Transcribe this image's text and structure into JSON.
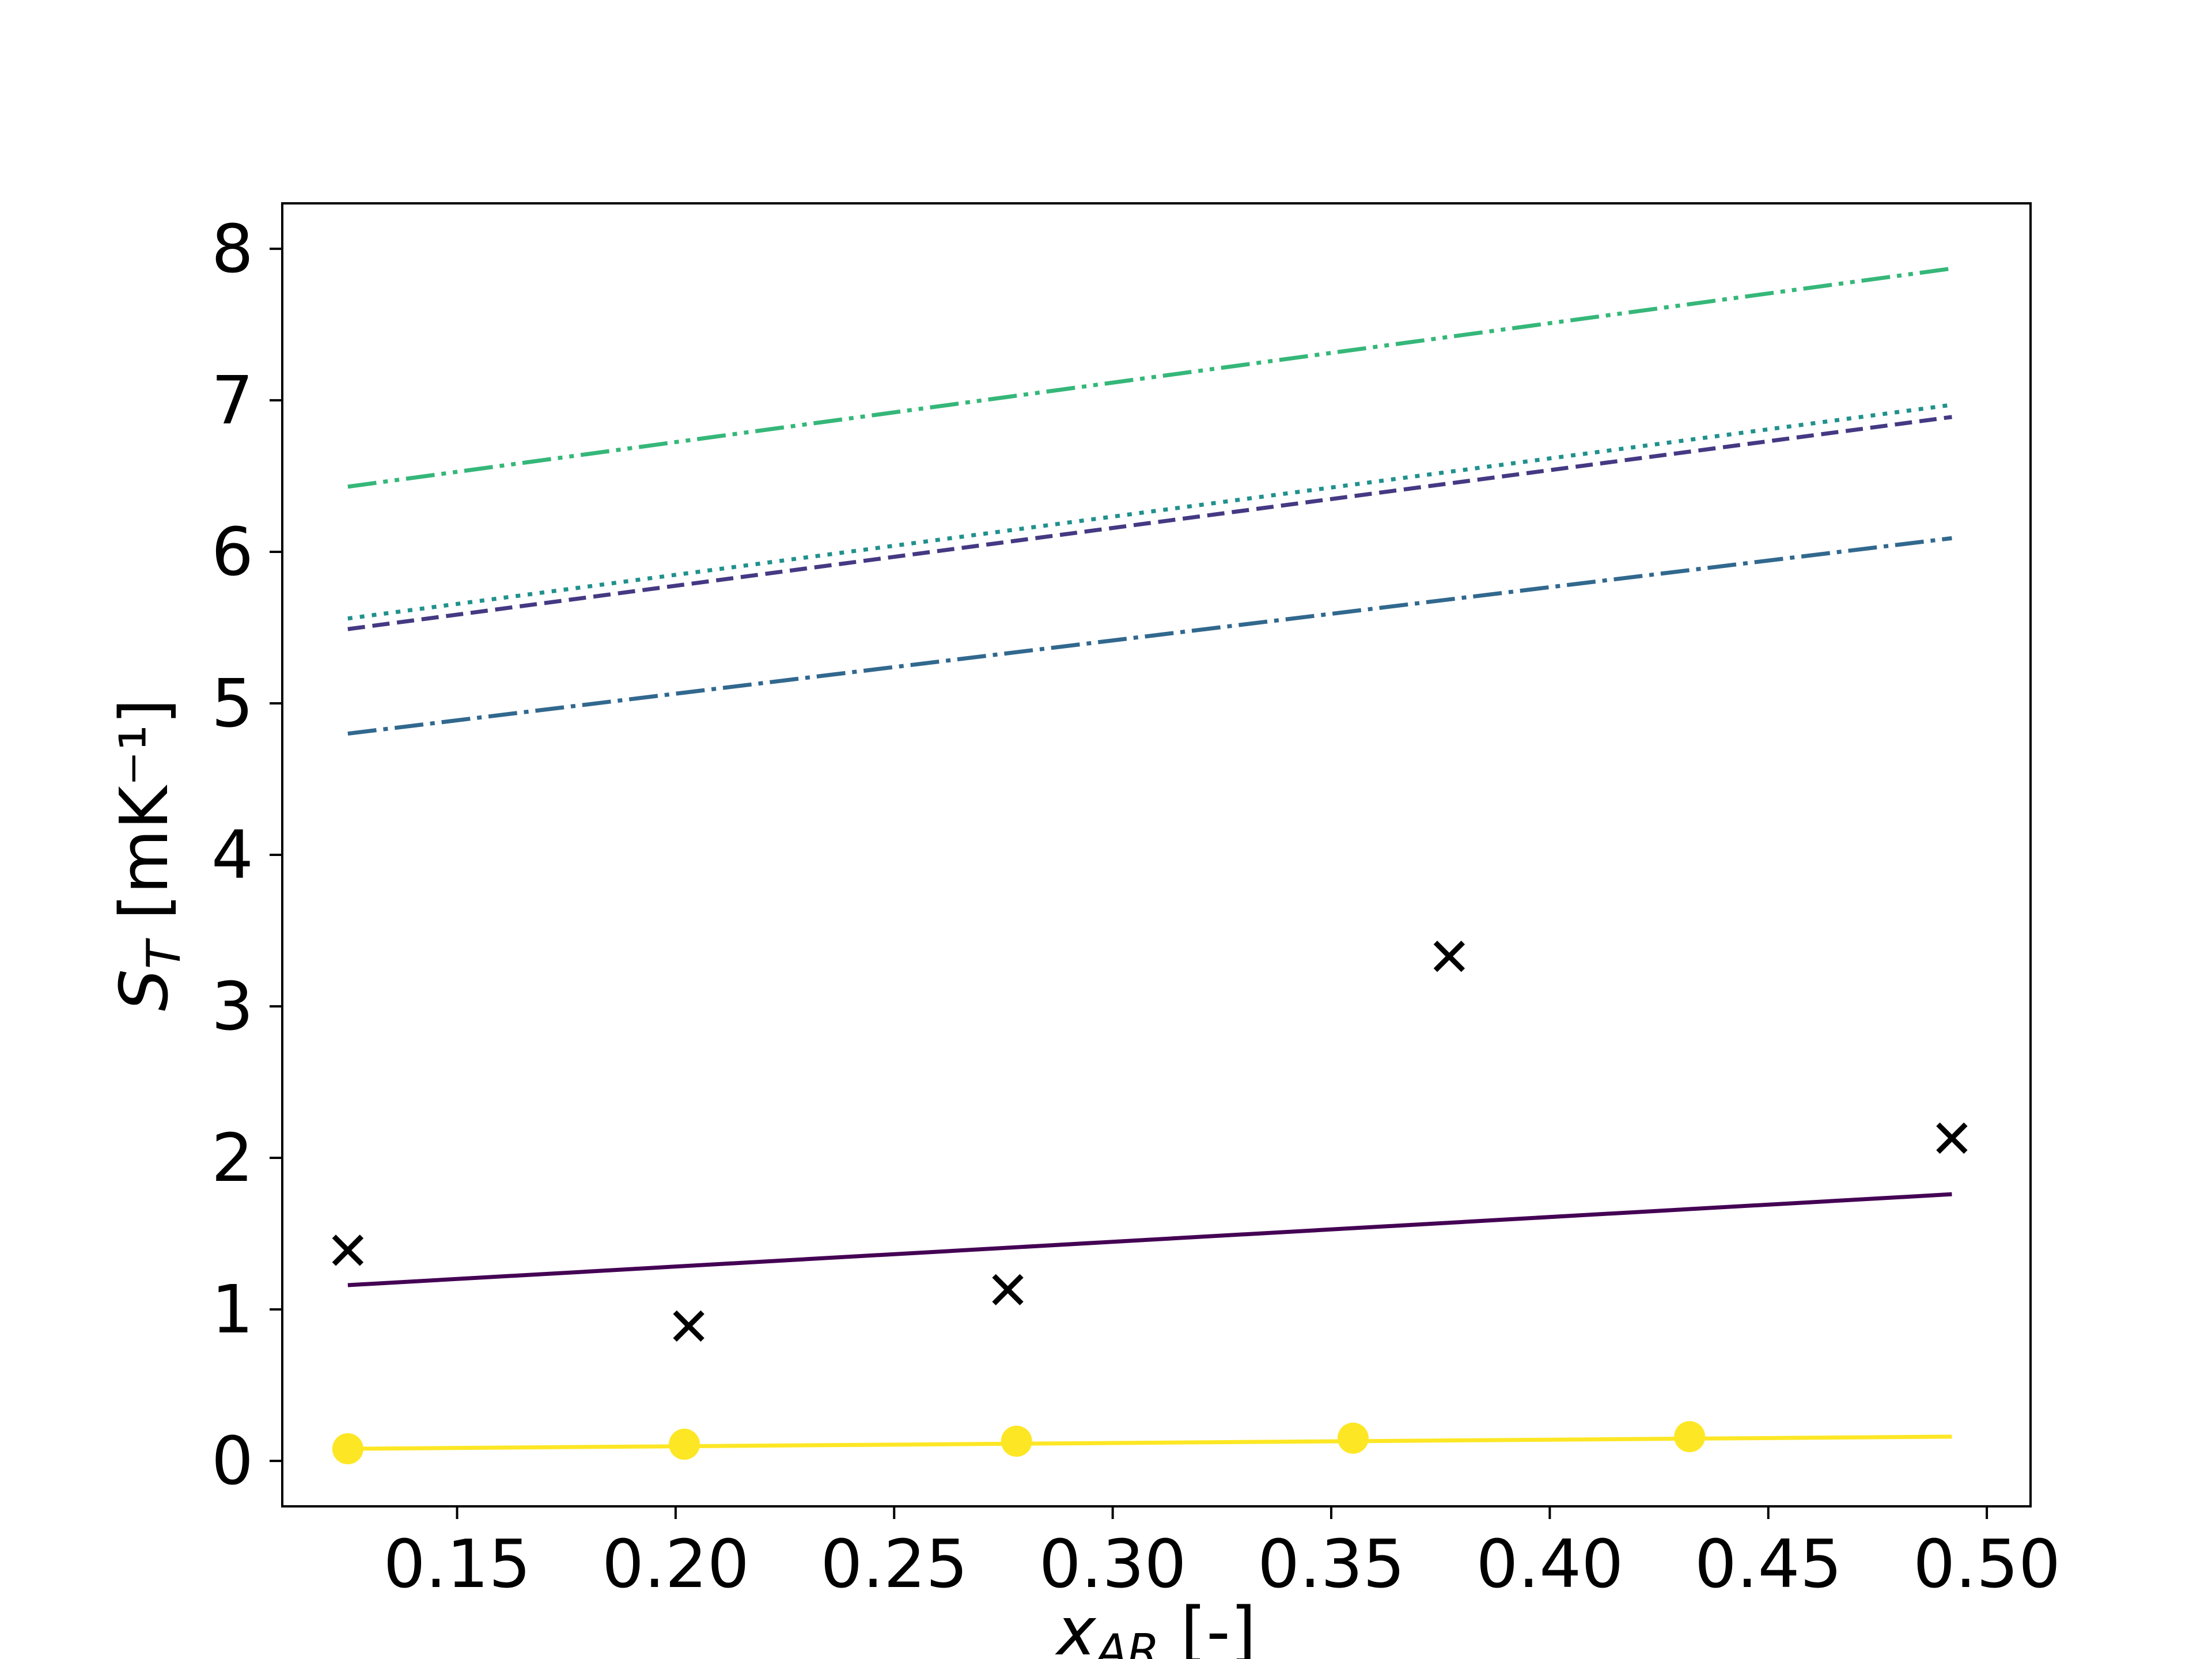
{
  "chart_data": {
    "type": "line",
    "title": "",
    "xlabel": {
      "symbol": "x",
      "subscript": "AR",
      "unit": " [-]"
    },
    "ylabel": {
      "symbol": "S",
      "subscript": "T",
      "unit": " [mK⁻¹]"
    },
    "xlim": [
      0.11,
      0.51
    ],
    "ylim": [
      -0.3,
      8.3
    ],
    "xticks": [
      0.15,
      0.2,
      0.25,
      0.3,
      0.35,
      0.4,
      0.45,
      0.5
    ],
    "xtick_labels": [
      "0.15",
      "0.20",
      "0.25",
      "0.30",
      "0.35",
      "0.40",
      "0.45",
      "0.50"
    ],
    "yticks": [
      0,
      1,
      2,
      3,
      4,
      5,
      6,
      7,
      8
    ],
    "ytick_labels": [
      "0",
      "1",
      "2",
      "3",
      "4",
      "5",
      "6",
      "7",
      "8"
    ],
    "grid": false,
    "legend": "none",
    "series": [
      {
        "style": "solid",
        "color": "#440154",
        "x": [
          0.125,
          0.492
        ],
        "y": [
          1.16,
          1.76
        ]
      },
      {
        "style": "dashed",
        "color": "#443983",
        "x": [
          0.125,
          0.492
        ],
        "y": [
          5.49,
          6.89
        ]
      },
      {
        "style": "dashdot",
        "color": "#31688e",
        "x": [
          0.125,
          0.492
        ],
        "y": [
          4.8,
          6.09
        ]
      },
      {
        "style": "dotted",
        "color": "#21918c",
        "x": [
          0.125,
          0.492
        ],
        "y": [
          5.56,
          6.97
        ]
      },
      {
        "style": "dashdotdot",
        "color": "#35b779",
        "x": [
          0.125,
          0.492
        ],
        "y": [
          6.43,
          7.87
        ]
      },
      {
        "style": "solid-markers",
        "color": "#fde725",
        "x": [
          0.125,
          0.492
        ],
        "y": [
          0.08,
          0.16
        ],
        "markers": {
          "x": [
            0.125,
            0.202,
            0.278,
            0.355,
            0.432
          ],
          "y": [
            0.08,
            0.11,
            0.13,
            0.15,
            0.16
          ]
        }
      }
    ],
    "scatter": {
      "marker": "x",
      "color": "#000000",
      "x": [
        0.125,
        0.203,
        0.276,
        0.377,
        0.492
      ],
      "y": [
        1.39,
        0.89,
        1.13,
        3.33,
        2.13
      ]
    }
  }
}
